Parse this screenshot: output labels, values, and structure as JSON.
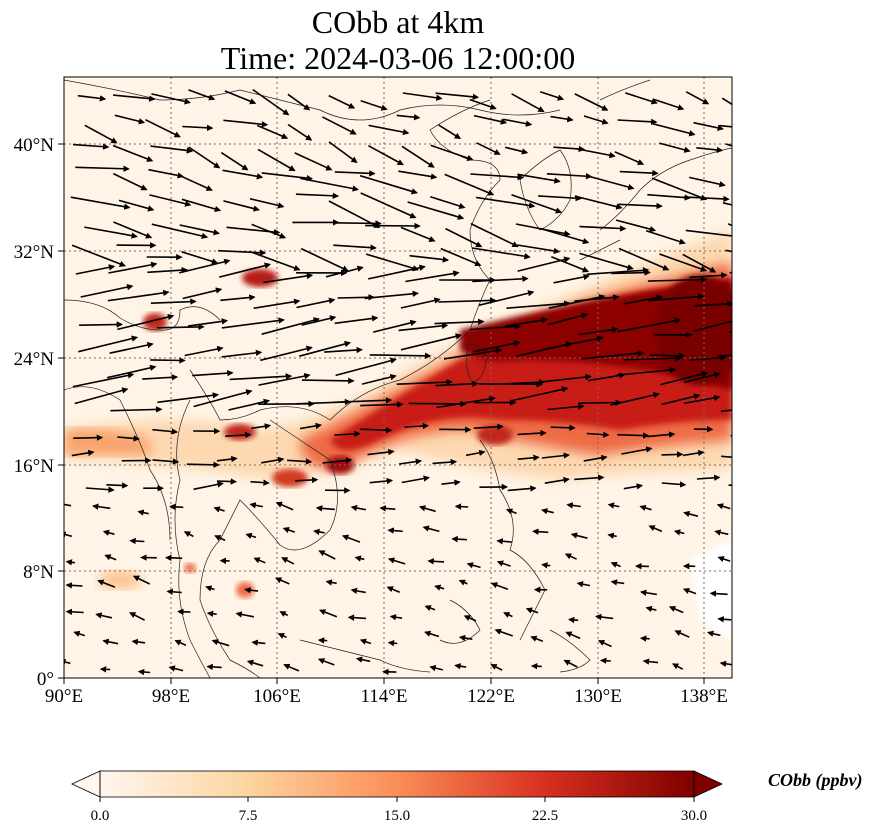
{
  "title": {
    "line1": "CObb at 4km",
    "line2": "Time: 2024-03-06 12:00:00"
  },
  "axes": {
    "x_ticks": [
      "90°E",
      "98°E",
      "106°E",
      "114°E",
      "122°E",
      "130°E",
      "138°E"
    ],
    "x_values": [
      90,
      98,
      106,
      114,
      122,
      130,
      138
    ],
    "y_ticks": [
      "0°",
      "8°N",
      "16°N",
      "24°N",
      "32°N",
      "40°N"
    ],
    "y_values": [
      0,
      8,
      16,
      24,
      32,
      40
    ],
    "lon_range": [
      90,
      140
    ],
    "lat_range": [
      0,
      45
    ],
    "grid": "dotted"
  },
  "colorbar": {
    "label": "CObb (ppbv)",
    "ticks": [
      "0.0",
      "7.5",
      "15.0",
      "22.5",
      "30.0"
    ],
    "tick_values": [
      0,
      7.5,
      15,
      22.5,
      30
    ],
    "range": [
      0,
      30
    ],
    "colormap": "OrRd",
    "extend": "both"
  },
  "colors": {
    "low": "#fff7ec",
    "mid": "#fc8d59",
    "high": "#7f0000"
  }
}
